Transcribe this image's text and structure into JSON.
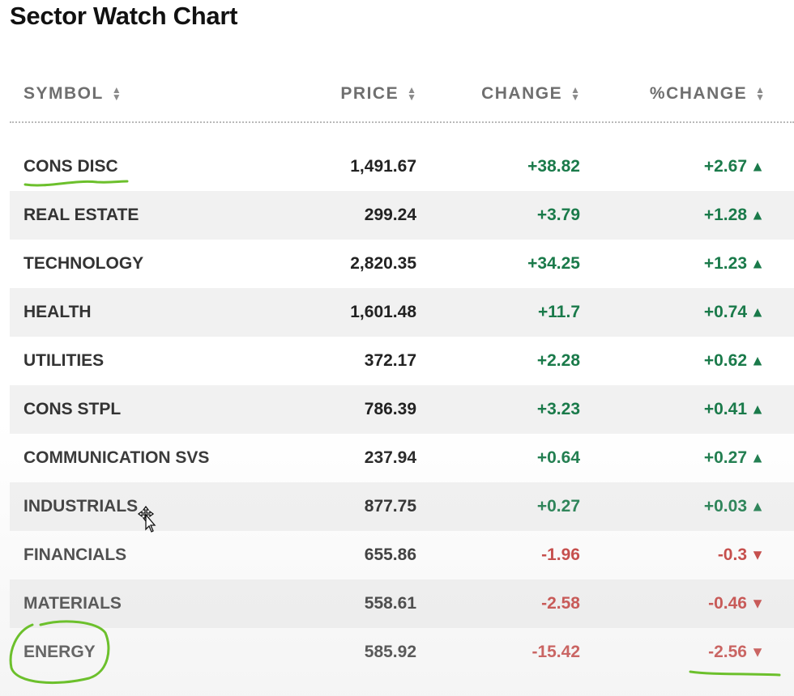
{
  "title": "Sector Watch Chart",
  "columns": {
    "symbol": "SYMBOL",
    "price": "PRICE",
    "change": "CHANGE",
    "pct_change": "%CHANGE"
  },
  "sort_glyph_up": "▲",
  "sort_glyph_down": "▼",
  "rows": [
    {
      "symbol": "CONS DISC",
      "price": "1,491.67",
      "change": "+38.82",
      "pct": "+2.67",
      "dir": "up"
    },
    {
      "symbol": "REAL ESTATE",
      "price": "299.24",
      "change": "+3.79",
      "pct": "+1.28",
      "dir": "up"
    },
    {
      "symbol": "TECHNOLOGY",
      "price": "2,820.35",
      "change": "+34.25",
      "pct": "+1.23",
      "dir": "up"
    },
    {
      "symbol": "HEALTH",
      "price": "1,601.48",
      "change": "+11.7",
      "pct": "+0.74",
      "dir": "up"
    },
    {
      "symbol": "UTILITIES",
      "price": "372.17",
      "change": "+2.28",
      "pct": "+0.62",
      "dir": "up"
    },
    {
      "symbol": "CONS STPL",
      "price": "786.39",
      "change": "+3.23",
      "pct": "+0.41",
      "dir": "up"
    },
    {
      "symbol": "COMMUNICATION SVS",
      "price": "237.94",
      "change": "+0.64",
      "pct": "+0.27",
      "dir": "up"
    },
    {
      "symbol": "INDUSTRIALS",
      "price": "877.75",
      "change": "+0.27",
      "pct": "+0.03",
      "dir": "up"
    },
    {
      "symbol": "FINANCIALS",
      "price": "655.86",
      "change": "-1.96",
      "pct": "-0.3",
      "dir": "down"
    },
    {
      "symbol": "MATERIALS",
      "price": "558.61",
      "change": "-2.58",
      "pct": "-0.46",
      "dir": "down"
    },
    {
      "symbol": "ENERGY",
      "price": "585.92",
      "change": "-15.42",
      "pct": "-2.56",
      "dir": "down"
    }
  ],
  "colors": {
    "up": "#1a7a4a",
    "down": "#c0322f",
    "annotation": "#6cc02c"
  },
  "icons": {
    "cursor": "move-cursor-icon",
    "sort": "sort-arrows-icon"
  }
}
